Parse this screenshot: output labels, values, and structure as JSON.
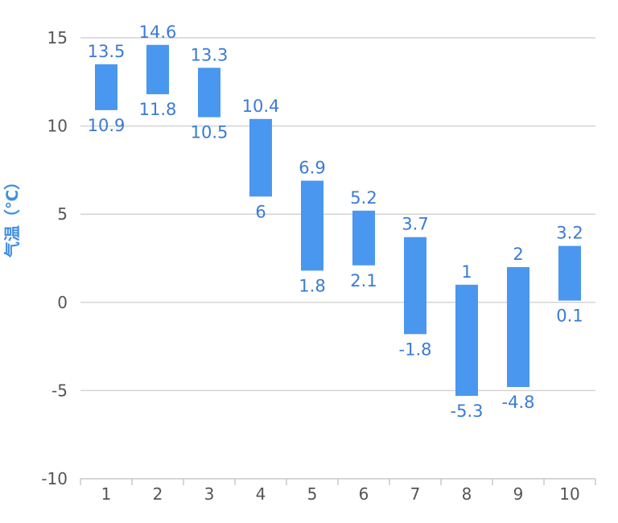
{
  "chart_data": {
    "type": "bar",
    "subtype": "floating-range",
    "categories": [
      "1",
      "2",
      "3",
      "4",
      "5",
      "6",
      "7",
      "8",
      "9",
      "10"
    ],
    "series": [
      {
        "low": [
          10.9,
          11.8,
          10.5,
          6,
          1.8,
          2.1,
          -1.8,
          -5.3,
          -4.8,
          0.1
        ],
        "high": [
          13.5,
          14.6,
          13.3,
          10.4,
          6.9,
          5.2,
          3.7,
          1,
          2,
          3.2
        ]
      }
    ],
    "low_labels": [
      "10.9",
      "11.8",
      "10.5",
      "6",
      "1.8",
      "2.1",
      "-1.8",
      "-5.3",
      "-4.8",
      "0.1"
    ],
    "high_labels": [
      "13.5",
      "14.6",
      "13.3",
      "10.4",
      "6.9",
      "5.2",
      "3.7",
      "1",
      "2",
      "3.2"
    ],
    "ylabel": "气温（℃）",
    "ylim": [
      -10,
      15
    ],
    "yticks": [
      15,
      10,
      5,
      0,
      -5,
      -10
    ],
    "ytick_labels": [
      "15",
      "10",
      "5",
      "0",
      "-5",
      "-10"
    ],
    "grid": true,
    "legend": "none",
    "bar_color": "#4a97f0"
  }
}
